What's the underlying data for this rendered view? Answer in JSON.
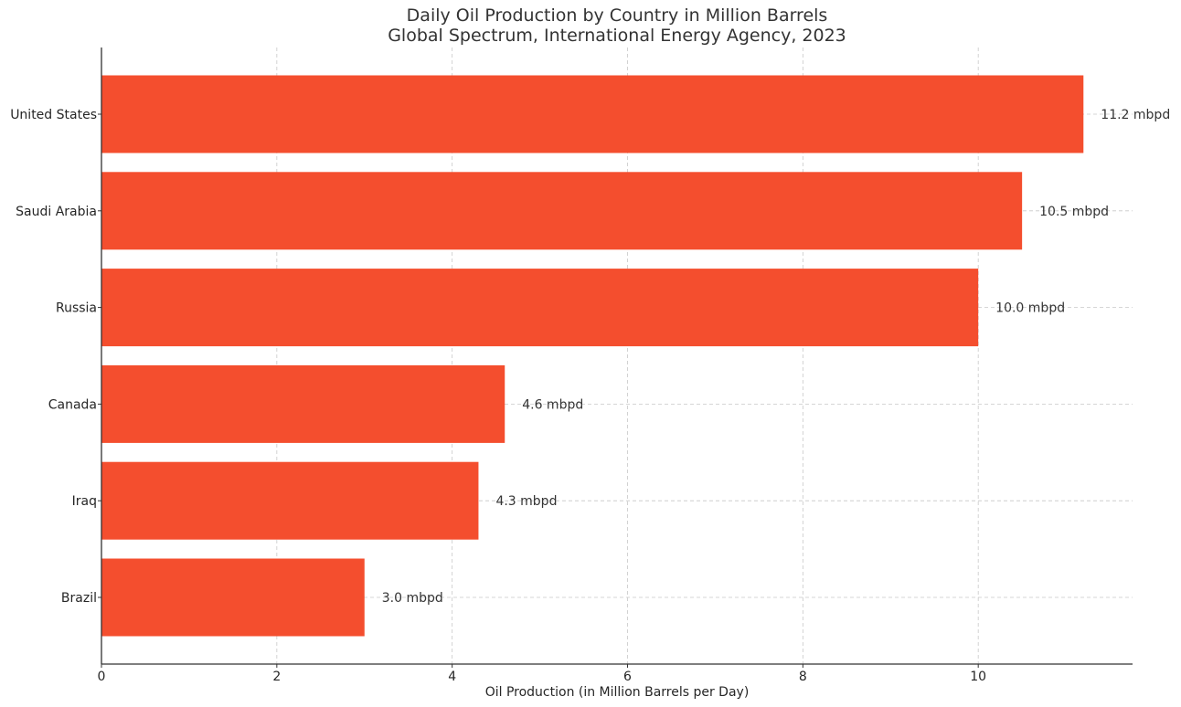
{
  "chart_data": {
    "type": "bar",
    "orientation": "horizontal",
    "title": "Daily Oil Production by Country in Million Barrels",
    "subtitle": "Global Spectrum, International Energy Agency, 2023",
    "xlabel": "Oil Production (in Million Barrels per Day)",
    "ylabel": "",
    "categories": [
      "United States",
      "Saudi Arabia",
      "Russia",
      "Canada",
      "Iraq",
      "Brazil"
    ],
    "values": [
      11.2,
      10.5,
      10.0,
      4.6,
      4.3,
      3.0
    ],
    "data_labels": [
      "11.2 mbpd",
      "10.5 mbpd",
      "10.0 mbpd",
      "4.6 mbpd",
      "4.3 mbpd",
      "3.0 mbpd"
    ],
    "xlim": [
      0,
      11.76
    ],
    "xticks": [
      0,
      2,
      4,
      6,
      8,
      10
    ],
    "xtick_labels": [
      "0",
      "2",
      "4",
      "6",
      "8",
      "10"
    ],
    "grid": true,
    "bar_color": "#f44e2e",
    "legend": "none"
  }
}
